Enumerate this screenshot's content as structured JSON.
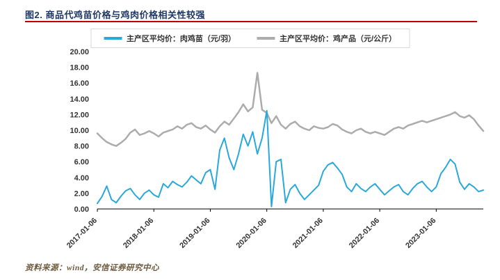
{
  "header": {
    "title": "图2. 商品代鸡苗价格与鸡肉价格相关性较强"
  },
  "footer": {
    "source": "资料来源：wind，安信证券研究中心"
  },
  "colors": {
    "title": "#1F3864",
    "rule": "#C00000",
    "chick_line": "#29A8DC",
    "product_line": "#ACACAC"
  },
  "chart_data": {
    "type": "line",
    "title": "",
    "legend_position": "top",
    "grid": false,
    "ylim": [
      0,
      20
    ],
    "y_tick_step": 2,
    "y_ticks": [
      "0.00",
      "2.00",
      "4.00",
      "6.00",
      "8.00",
      "10.00",
      "12.00",
      "14.00",
      "16.00",
      "18.00",
      "20.00"
    ],
    "x_ticks": [
      "2017-01-06",
      "2018-01-06",
      "2019-01-06",
      "2020-01-06",
      "2021-01-06",
      "2022-01-06",
      "2023-01-06"
    ],
    "x": [
      "2017-01",
      "2017-02",
      "2017-03",
      "2017-04",
      "2017-05",
      "2017-06",
      "2017-07",
      "2017-08",
      "2017-09",
      "2017-10",
      "2017-11",
      "2017-12",
      "2018-01",
      "2018-02",
      "2018-03",
      "2018-04",
      "2018-05",
      "2018-06",
      "2018-07",
      "2018-08",
      "2018-09",
      "2018-10",
      "2018-11",
      "2018-12",
      "2019-01",
      "2019-02",
      "2019-03",
      "2019-04",
      "2019-05",
      "2019-06",
      "2019-07",
      "2019-08",
      "2019-09",
      "2019-10",
      "2019-11",
      "2019-12",
      "2020-01",
      "2020-02",
      "2020-03",
      "2020-04",
      "2020-05",
      "2020-06",
      "2020-07",
      "2020-08",
      "2020-09",
      "2020-10",
      "2020-11",
      "2020-12",
      "2021-01",
      "2021-02",
      "2021-03",
      "2021-04",
      "2021-05",
      "2021-06",
      "2021-07",
      "2021-08",
      "2021-09",
      "2021-10",
      "2021-11",
      "2021-12",
      "2022-01",
      "2022-02",
      "2022-03",
      "2022-04",
      "2022-05",
      "2022-06",
      "2022-07",
      "2022-08",
      "2022-09",
      "2022-10",
      "2022-11",
      "2022-12",
      "2023-01",
      "2023-02",
      "2023-03",
      "2023-04",
      "2023-05",
      "2023-06",
      "2023-07",
      "2023-08",
      "2023-09",
      "2023-10",
      "2023-11"
    ],
    "series": [
      {
        "key": "chick",
        "name": "主产区平均价：肉鸡苗（元/羽）",
        "color": "#29A8DC",
        "stroke_width": 2,
        "values": [
          0.7,
          1.6,
          2.9,
          1.2,
          0.8,
          1.6,
          2.3,
          2.6,
          1.8,
          1.2,
          2.0,
          2.4,
          1.8,
          1.5,
          3.2,
          2.7,
          3.5,
          3.1,
          2.8,
          3.4,
          4.2,
          3.7,
          3.2,
          4.6,
          5.0,
          2.5,
          7.5,
          9.0,
          6.5,
          5.0,
          7.0,
          9.5,
          8.0,
          9.8,
          7.0,
          9.0,
          12.5,
          0.3,
          6.0,
          6.3,
          0.8,
          2.5,
          3.1,
          2.0,
          1.2,
          1.8,
          2.4,
          3.0,
          4.8,
          5.6,
          5.9,
          5.2,
          4.4,
          2.8,
          2.2,
          3.2,
          2.6,
          2.2,
          2.8,
          3.2,
          2.5,
          1.8,
          2.3,
          2.8,
          3.1,
          2.2,
          1.8,
          2.6,
          3.2,
          3.5,
          2.8,
          2.2,
          2.8,
          4.5,
          5.3,
          6.3,
          5.7,
          3.4,
          2.5,
          3.2,
          2.8,
          2.2,
          2.4
        ]
      },
      {
        "key": "product",
        "name": "主产区平均价：鸡产品（元/公斤）",
        "color": "#ACACAC",
        "stroke_width": 2.5,
        "values": [
          9.6,
          9.0,
          8.5,
          8.2,
          8.0,
          8.4,
          8.9,
          9.7,
          10.1,
          9.4,
          9.6,
          9.9,
          9.6,
          9.2,
          9.7,
          9.9,
          10.1,
          10.5,
          10.2,
          10.7,
          10.9,
          10.4,
          10.2,
          10.6,
          10.1,
          9.7,
          10.5,
          11.1,
          10.7,
          11.5,
          12.3,
          13.3,
          12.4,
          12.9,
          17.3,
          12.6,
          12.2,
          10.9,
          11.8,
          10.7,
          10.2,
          10.8,
          11.1,
          10.5,
          10.2,
          10.0,
          10.5,
          10.3,
          10.2,
          10.4,
          10.8,
          10.6,
          10.1,
          9.8,
          9.6,
          10.0,
          10.2,
          9.8,
          9.6,
          9.8,
          9.6,
          9.4,
          9.8,
          10.2,
          10.4,
          10.2,
          10.6,
          10.8,
          11.0,
          11.2,
          11.0,
          11.2,
          11.4,
          11.6,
          11.8,
          12.0,
          12.3,
          11.8,
          11.6,
          11.9,
          11.4,
          10.6,
          9.9
        ]
      }
    ]
  }
}
